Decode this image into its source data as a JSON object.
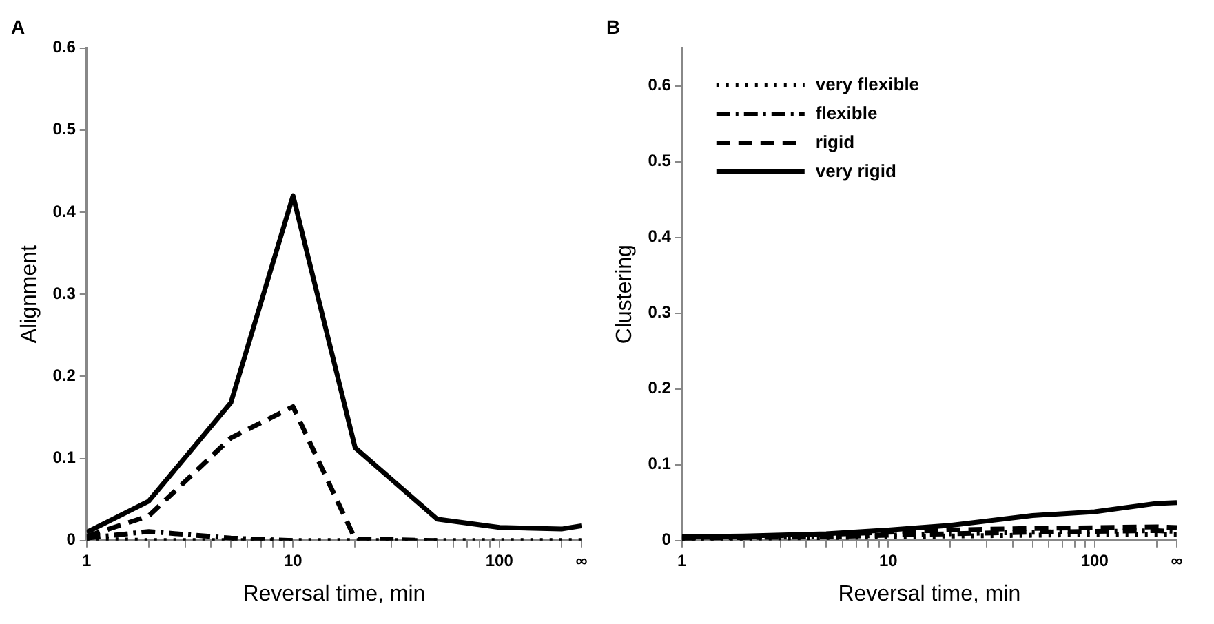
{
  "chart_data": [
    {
      "type": "line",
      "title": "A",
      "xlabel": "Reversal time, min",
      "ylabel": "Alignment",
      "log": "x",
      "x": [
        1,
        2,
        5,
        10,
        20,
        50,
        100,
        200,
        250
      ],
      "xlim": [
        1,
        250
      ],
      "xticks": [
        1,
        {
          "value": 2,
          "label": null
        },
        {
          "value": 3,
          "label": null
        },
        {
          "value": 4,
          "label": null
        },
        {
          "value": 5,
          "label": null
        },
        {
          "value": 6,
          "label": null
        },
        {
          "value": 7,
          "label": null
        },
        {
          "value": 8,
          "label": null
        },
        {
          "value": 9,
          "label": null
        },
        10,
        {
          "value": 20,
          "label": null
        },
        {
          "value": 30,
          "label": null
        },
        {
          "value": 40,
          "label": null
        },
        {
          "value": 50,
          "label": null
        },
        {
          "value": 60,
          "label": null
        },
        {
          "value": 70,
          "label": null
        },
        {
          "value": 80,
          "label": null
        },
        {
          "value": 90,
          "label": null
        },
        100,
        {
          "value": 200,
          "label": null
        },
        {
          "value": 250,
          "label": "∞"
        }
      ],
      "ylim": [
        0,
        0.6
      ],
      "yticks": [
        0,
        0.1,
        0.2,
        0.3,
        0.4,
        0.5,
        0.6
      ],
      "series": [
        {
          "color": "#000000",
          "line_style": "dotted",
          "values": [
            0.002,
            0,
            0,
            0,
            0,
            0,
            0,
            0,
            0
          ]
        },
        {
          "color": "#000000",
          "line_style": "dashdot",
          "values": [
            0.003,
            0.011,
            0.003,
            0,
            null,
            null,
            null,
            null,
            null
          ]
        },
        {
          "color": "#000000",
          "line_style": "dashed",
          "values": [
            0.005,
            0.03,
            0.125,
            0.163,
            0.002,
            0,
            null,
            null,
            null
          ]
        },
        {
          "color": "#000000",
          "line_style": "solid",
          "values": [
            0.01,
            0.048,
            0.168,
            0.42,
            0.113,
            0.026,
            0.016,
            0.014,
            0.018
          ]
        }
      ]
    },
    {
      "type": "line",
      "title": "B",
      "xlabel": "Reversal time, min",
      "ylabel": "Clustering",
      "log": "x",
      "x": [
        1,
        2,
        5,
        10,
        20,
        50,
        100,
        200,
        250
      ],
      "legend": "top left",
      "xlim": [
        1,
        250
      ],
      "xticks": [
        1,
        {
          "value": 2,
          "label": null
        },
        {
          "value": 3,
          "label": null
        },
        {
          "value": 4,
          "label": null
        },
        {
          "value": 5,
          "label": null
        },
        {
          "value": 6,
          "label": null
        },
        {
          "value": 7,
          "label": null
        },
        {
          "value": 8,
          "label": null
        },
        {
          "value": 9,
          "label": null
        },
        10,
        {
          "value": 20,
          "label": null
        },
        {
          "value": 30,
          "label": null
        },
        {
          "value": 40,
          "label": null
        },
        {
          "value": 50,
          "label": null
        },
        {
          "value": 60,
          "label": null
        },
        {
          "value": 70,
          "label": null
        },
        {
          "value": 80,
          "label": null
        },
        {
          "value": 90,
          "label": null
        },
        100,
        {
          "value": 200,
          "label": null
        },
        {
          "value": 250,
          "label": "∞"
        }
      ],
      "ylim": [
        0,
        0.65
      ],
      "yticks": [
        0,
        0.1,
        0.2,
        0.3,
        0.4,
        0.5,
        0.6
      ],
      "series": [
        {
          "name": "very flexible",
          "color": "#000000",
          "line_style": "dotted",
          "values": [
            0.002,
            0.003,
            0.004,
            0.005,
            0.006,
            0.007,
            0.008,
            0.008,
            0.008
          ]
        },
        {
          "name": "flexible",
          "color": "#000000",
          "line_style": "dashdot",
          "values": [
            0.003,
            0.004,
            0.005,
            0.007,
            0.009,
            0.011,
            0.012,
            0.013,
            0.012
          ]
        },
        {
          "name": "rigid",
          "color": "#000000",
          "line_style": "dashed",
          "values": [
            0.004,
            0.005,
            0.008,
            0.011,
            0.014,
            0.016,
            0.017,
            0.018,
            0.017
          ]
        },
        {
          "name": "very rigid",
          "color": "#000000",
          "line_style": "solid",
          "values": [
            0.005,
            0.006,
            0.009,
            0.014,
            0.02,
            0.033,
            0.038,
            0.049,
            0.05
          ]
        }
      ]
    }
  ]
}
